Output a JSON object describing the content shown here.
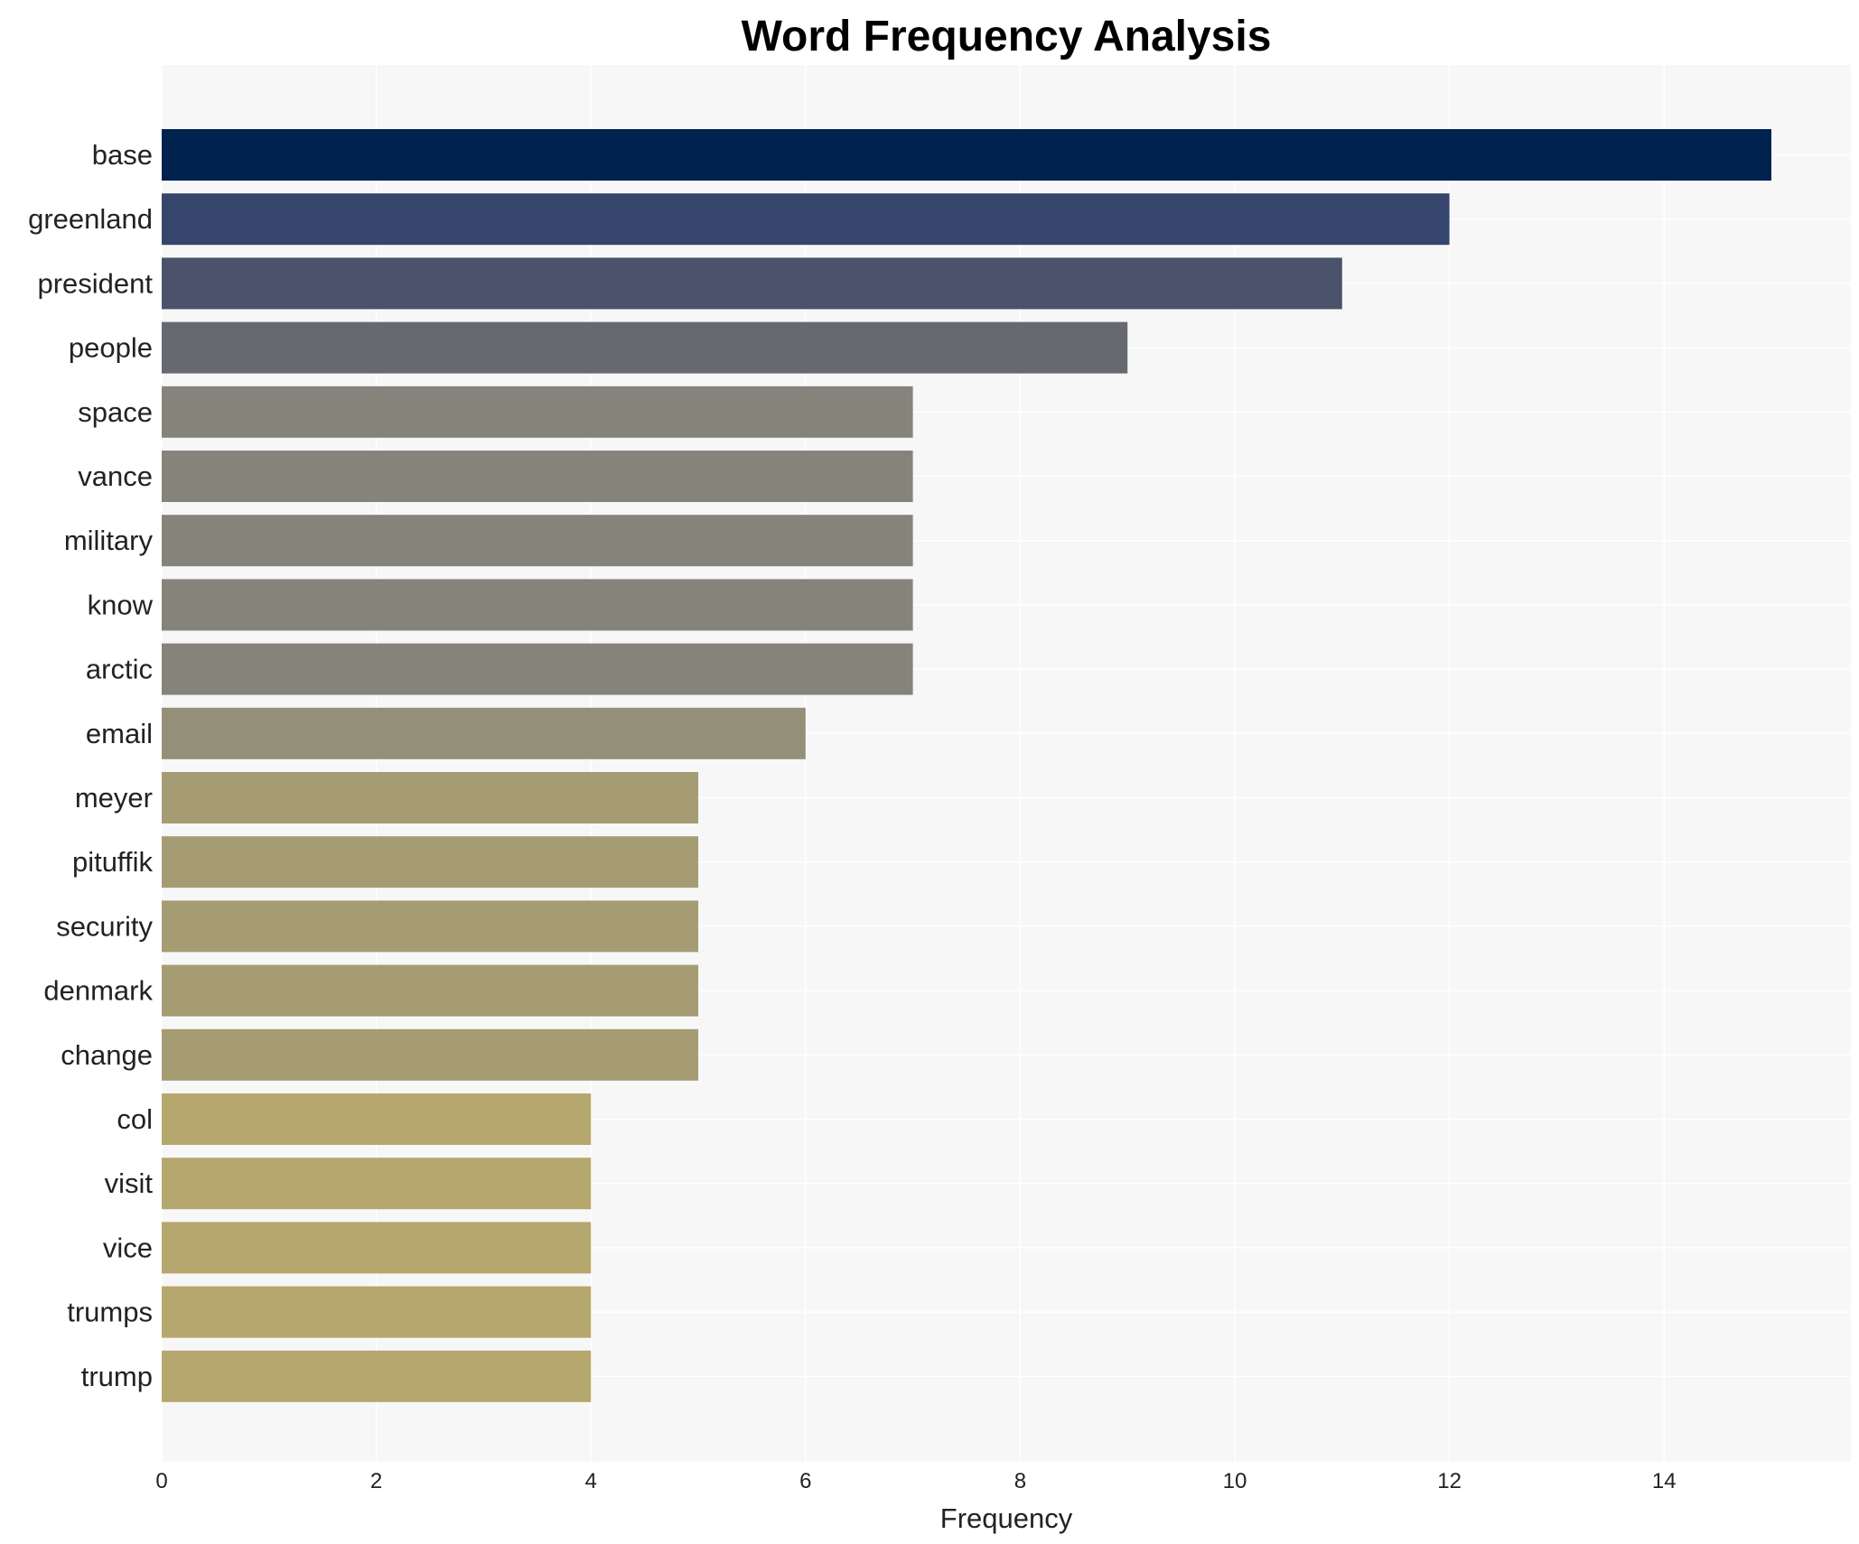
{
  "chart_data": {
    "type": "bar",
    "orientation": "horizontal",
    "title": "Word Frequency Analysis",
    "xlabel": "Frequency",
    "ylabel": "",
    "xlim": [
      0,
      15.75
    ],
    "xticks": [
      0,
      2,
      4,
      6,
      8,
      10,
      12,
      14
    ],
    "grid": true,
    "legend": "none",
    "categories": [
      "base",
      "greenland",
      "president",
      "people",
      "space",
      "vance",
      "military",
      "know",
      "arctic",
      "email",
      "meyer",
      "pituffik",
      "security",
      "denmark",
      "change",
      "col",
      "visit",
      "vice",
      "trumps",
      "trump"
    ],
    "values": [
      15,
      12,
      11,
      9,
      7,
      7,
      7,
      7,
      7,
      6,
      5,
      5,
      5,
      5,
      5,
      4,
      4,
      4,
      4,
      4
    ],
    "colors": [
      "#00224e",
      "#35456c",
      "#4a536b",
      "#666970",
      "#85837a",
      "#85837a",
      "#85837a",
      "#85837a",
      "#85837a",
      "#948f78",
      "#a59c74",
      "#a59c74",
      "#a59c74",
      "#a59c74",
      "#a59c74",
      "#b5a76d",
      "#b5a76d",
      "#b5a76d",
      "#b5a76d",
      "#b5a76d"
    ],
    "plot_background": "#f7f7f7"
  }
}
